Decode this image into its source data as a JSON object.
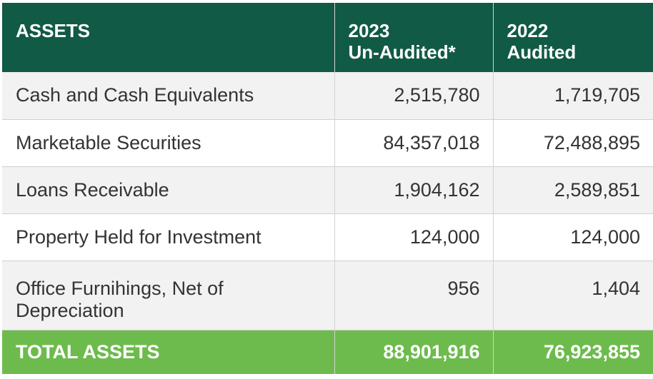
{
  "header": {
    "label": "ASSETS",
    "col_2023_line1": "2023",
    "col_2023_line2": "Un-Audited*",
    "col_2022_line1": "2022",
    "col_2022_line2": "Audited"
  },
  "rows": [
    {
      "label": "Cash and Cash Equivalents",
      "v2023": "2,515,780",
      "v2022": "1,719,705"
    },
    {
      "label": "Marketable Securities",
      "v2023": "84,357,018",
      "v2022": "72,488,895"
    },
    {
      "label": "Loans Receivable",
      "v2023": "1,904,162",
      "v2022": "2,589,851"
    },
    {
      "label": "Property Held for Investment",
      "v2023": "124,000",
      "v2022": "124,000"
    },
    {
      "label": "Office Furnihings, Net of Depreciation",
      "v2023": "956",
      "v2022": "1,404"
    }
  ],
  "total": {
    "label": "TOTAL ASSETS",
    "v2023": "88,901,916",
    "v2022": "76,923,855"
  },
  "colors": {
    "header_bg": "#115a45",
    "total_bg": "#6dbb4c",
    "alt_row_bg": "#f2f2f2"
  }
}
